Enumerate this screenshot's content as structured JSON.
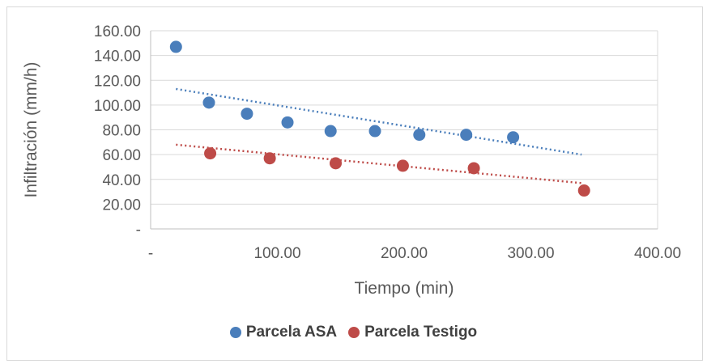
{
  "chart_data": {
    "type": "scatter",
    "xlabel": "Tiempo (min)",
    "ylabel": "Infiltración (mm/h)",
    "xlim": [
      0,
      400
    ],
    "ylim": [
      0,
      160
    ],
    "x_ticks": [
      0,
      100,
      200,
      300,
      400
    ],
    "x_tick_labels": [
      "-",
      "100.00",
      "200.00",
      "300.00",
      "400.00"
    ],
    "y_ticks": [
      0,
      20,
      40,
      60,
      80,
      100,
      120,
      140,
      160
    ],
    "y_tick_labels": [
      "-",
      "20.00",
      "40.00",
      "60.00",
      "80.00",
      "100.00",
      "120.00",
      "140.00",
      "160.00"
    ],
    "grid": "horizontal",
    "legend_position": "bottom",
    "series": [
      {
        "name": "Parcela ASA",
        "color": "#4a7ebb",
        "points": [
          [
            20,
            147
          ],
          [
            46,
            102
          ],
          [
            76,
            93
          ],
          [
            108,
            86
          ],
          [
            142,
            79
          ],
          [
            177,
            79
          ],
          [
            212,
            76
          ],
          [
            249,
            76
          ],
          [
            286,
            74
          ]
        ],
        "trendline": {
          "type": "power",
          "from": [
            20,
            113
          ],
          "to": [
            340,
            60
          ]
        }
      },
      {
        "name": "Parcela Testigo",
        "color": "#be4b48",
        "points": [
          [
            47,
            61
          ],
          [
            94,
            57
          ],
          [
            146,
            53
          ],
          [
            199,
            51
          ],
          [
            255,
            49
          ],
          [
            342,
            31
          ]
        ],
        "trendline": {
          "type": "linear",
          "from": [
            20,
            68
          ],
          "to": [
            340,
            37
          ]
        }
      }
    ]
  }
}
